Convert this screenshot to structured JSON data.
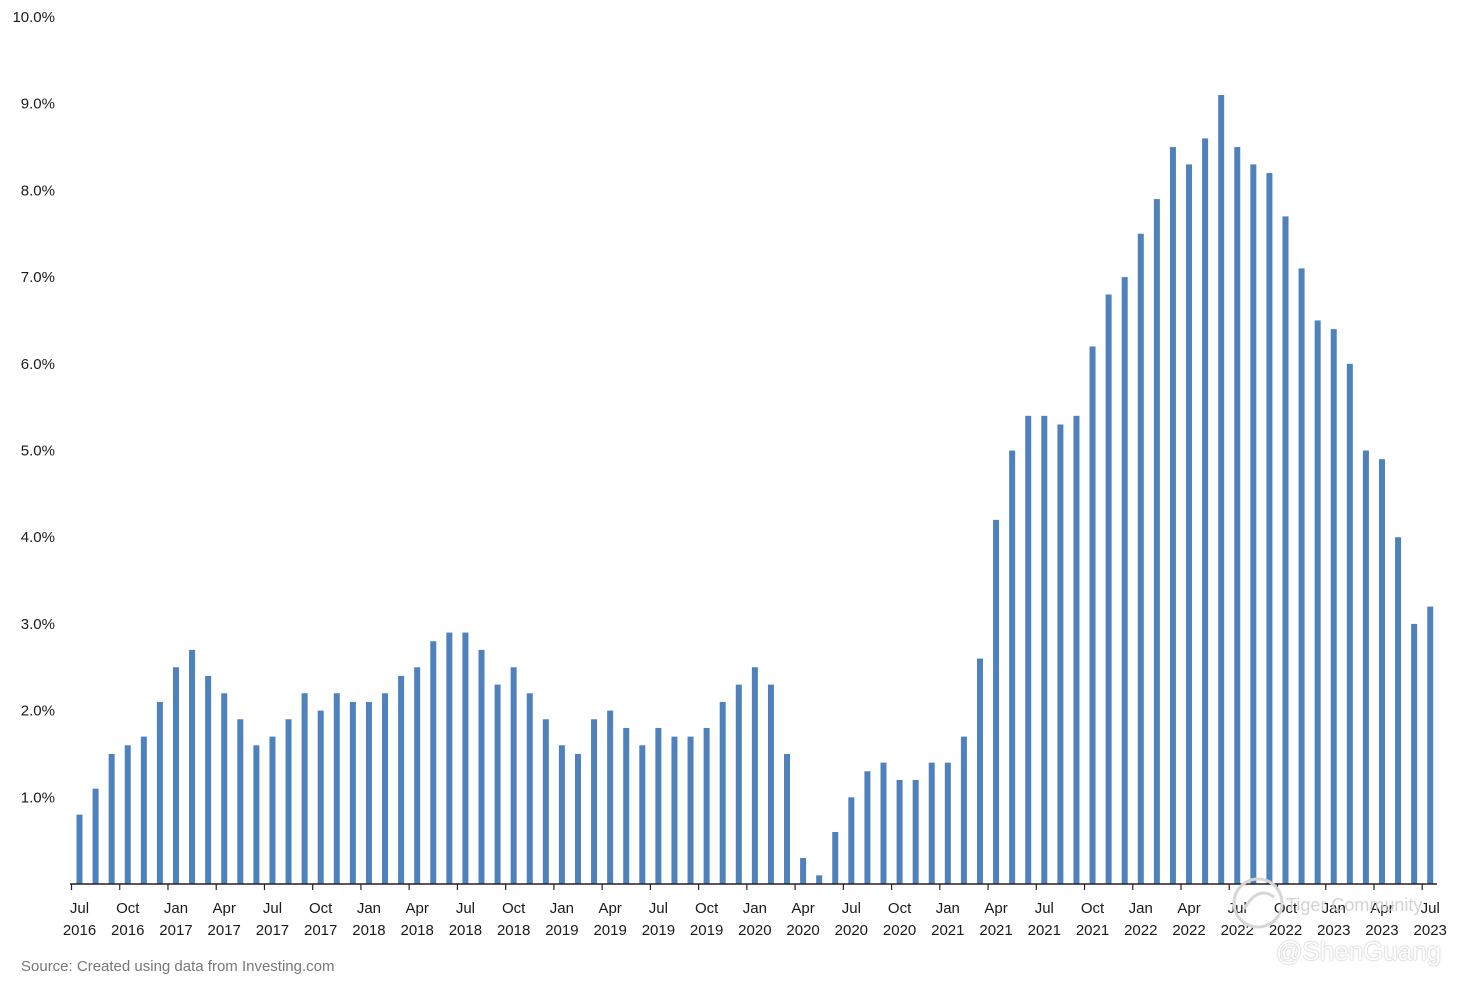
{
  "chart_data": {
    "type": "bar",
    "title": "",
    "xlabel": "",
    "ylabel": "",
    "ylim": [
      0,
      10
    ],
    "yticks": [
      "1.0%",
      "2.0%",
      "3.0%",
      "4.0%",
      "5.0%",
      "6.0%",
      "7.0%",
      "8.0%",
      "9.0%",
      "10.0%"
    ],
    "grid": false,
    "bar_color": "#4f81bd",
    "categories": [
      "Jul 2016",
      "Aug 2016",
      "Sep 2016",
      "Oct 2016",
      "Nov 2016",
      "Dec 2016",
      "Jan 2017",
      "Feb 2017",
      "Mar 2017",
      "Apr 2017",
      "May 2017",
      "Jun 2017",
      "Jul 2017",
      "Aug 2017",
      "Sep 2017",
      "Oct 2017",
      "Nov 2017",
      "Dec 2017",
      "Jan 2018",
      "Feb 2018",
      "Mar 2018",
      "Apr 2018",
      "May 2018",
      "Jun 2018",
      "Jul 2018",
      "Aug 2018",
      "Sep 2018",
      "Oct 2018",
      "Nov 2018",
      "Dec 2018",
      "Jan 2019",
      "Feb 2019",
      "Mar 2019",
      "Apr 2019",
      "May 2019",
      "Jun 2019",
      "Jul 2019",
      "Aug 2019",
      "Sep 2019",
      "Oct 2019",
      "Nov 2019",
      "Dec 2019",
      "Jan 2020",
      "Feb 2020",
      "Mar 2020",
      "Apr 2020",
      "May 2020",
      "Jun 2020",
      "Jul 2020",
      "Aug 2020",
      "Sep 2020",
      "Oct 2020",
      "Nov 2020",
      "Dec 2020",
      "Jan 2021",
      "Feb 2021",
      "Mar 2021",
      "Apr 2021",
      "May 2021",
      "Jun 2021",
      "Jul 2021",
      "Aug 2021",
      "Sep 2021",
      "Oct 2021",
      "Nov 2021",
      "Dec 2021",
      "Jan 2022",
      "Feb 2022",
      "Mar 2022",
      "Apr 2022",
      "May 2022",
      "Jun 2022",
      "Jul 2022",
      "Aug 2022",
      "Sep 2022",
      "Oct 2022",
      "Nov 2022",
      "Dec 2022",
      "Jan 2023",
      "Feb 2023",
      "Mar 2023",
      "Apr 2023",
      "May 2023",
      "Jun 2023",
      "Jul 2023"
    ],
    "values": [
      0.8,
      1.1,
      1.5,
      1.6,
      1.7,
      2.1,
      2.5,
      2.7,
      2.4,
      2.2,
      1.9,
      1.6,
      1.7,
      1.9,
      2.2,
      2.0,
      2.2,
      2.1,
      2.1,
      2.2,
      2.4,
      2.5,
      2.8,
      2.9,
      2.9,
      2.7,
      2.3,
      2.5,
      2.2,
      1.9,
      1.6,
      1.5,
      1.9,
      2.0,
      1.8,
      1.6,
      1.8,
      1.7,
      1.7,
      1.8,
      2.1,
      2.3,
      2.5,
      2.3,
      1.5,
      0.3,
      0.1,
      0.6,
      1.0,
      1.3,
      1.4,
      1.2,
      1.2,
      1.4,
      1.4,
      1.7,
      2.6,
      4.2,
      5.0,
      5.4,
      5.4,
      5.3,
      5.4,
      6.2,
      6.8,
      7.0,
      7.5,
      7.9,
      8.5,
      8.3,
      8.6,
      9.1,
      8.5,
      8.3,
      8.2,
      7.7,
      7.1,
      6.5,
      6.4,
      6.0,
      5.0,
      4.9,
      4.0,
      3.0,
      3.2
    ],
    "xtick_labels": [
      [
        "Jul",
        "2016"
      ],
      [
        "Oct",
        "2016"
      ],
      [
        "Jan",
        "2017"
      ],
      [
        "Apr",
        "2017"
      ],
      [
        "Jul",
        "2017"
      ],
      [
        "Oct",
        "2017"
      ],
      [
        "Jan",
        "2018"
      ],
      [
        "Apr",
        "2018"
      ],
      [
        "Jul",
        "2018"
      ],
      [
        "Oct",
        "2018"
      ],
      [
        "Jan",
        "2019"
      ],
      [
        "Apr",
        "2019"
      ],
      [
        "Jul",
        "2019"
      ],
      [
        "Oct",
        "2019"
      ],
      [
        "Jan",
        "2020"
      ],
      [
        "Apr",
        "2020"
      ],
      [
        "Jul",
        "2020"
      ],
      [
        "Oct",
        "2020"
      ],
      [
        "Jan",
        "2021"
      ],
      [
        "Apr",
        "2021"
      ],
      [
        "Jul",
        "2021"
      ],
      [
        "Oct",
        "2021"
      ],
      [
        "Jan",
        "2022"
      ],
      [
        "Apr",
        "2022"
      ],
      [
        "Jul",
        "2022"
      ],
      [
        "Oct",
        "2022"
      ],
      [
        "Jan",
        "2023"
      ],
      [
        "Apr",
        "2023"
      ],
      [
        "Jul",
        "2023"
      ]
    ]
  },
  "source_text": "Source: Created using data from Investing.com",
  "watermark": {
    "name": "@ShenGuang",
    "community": "Tiger Community",
    "logo_icon": "tiger-logo-icon"
  }
}
